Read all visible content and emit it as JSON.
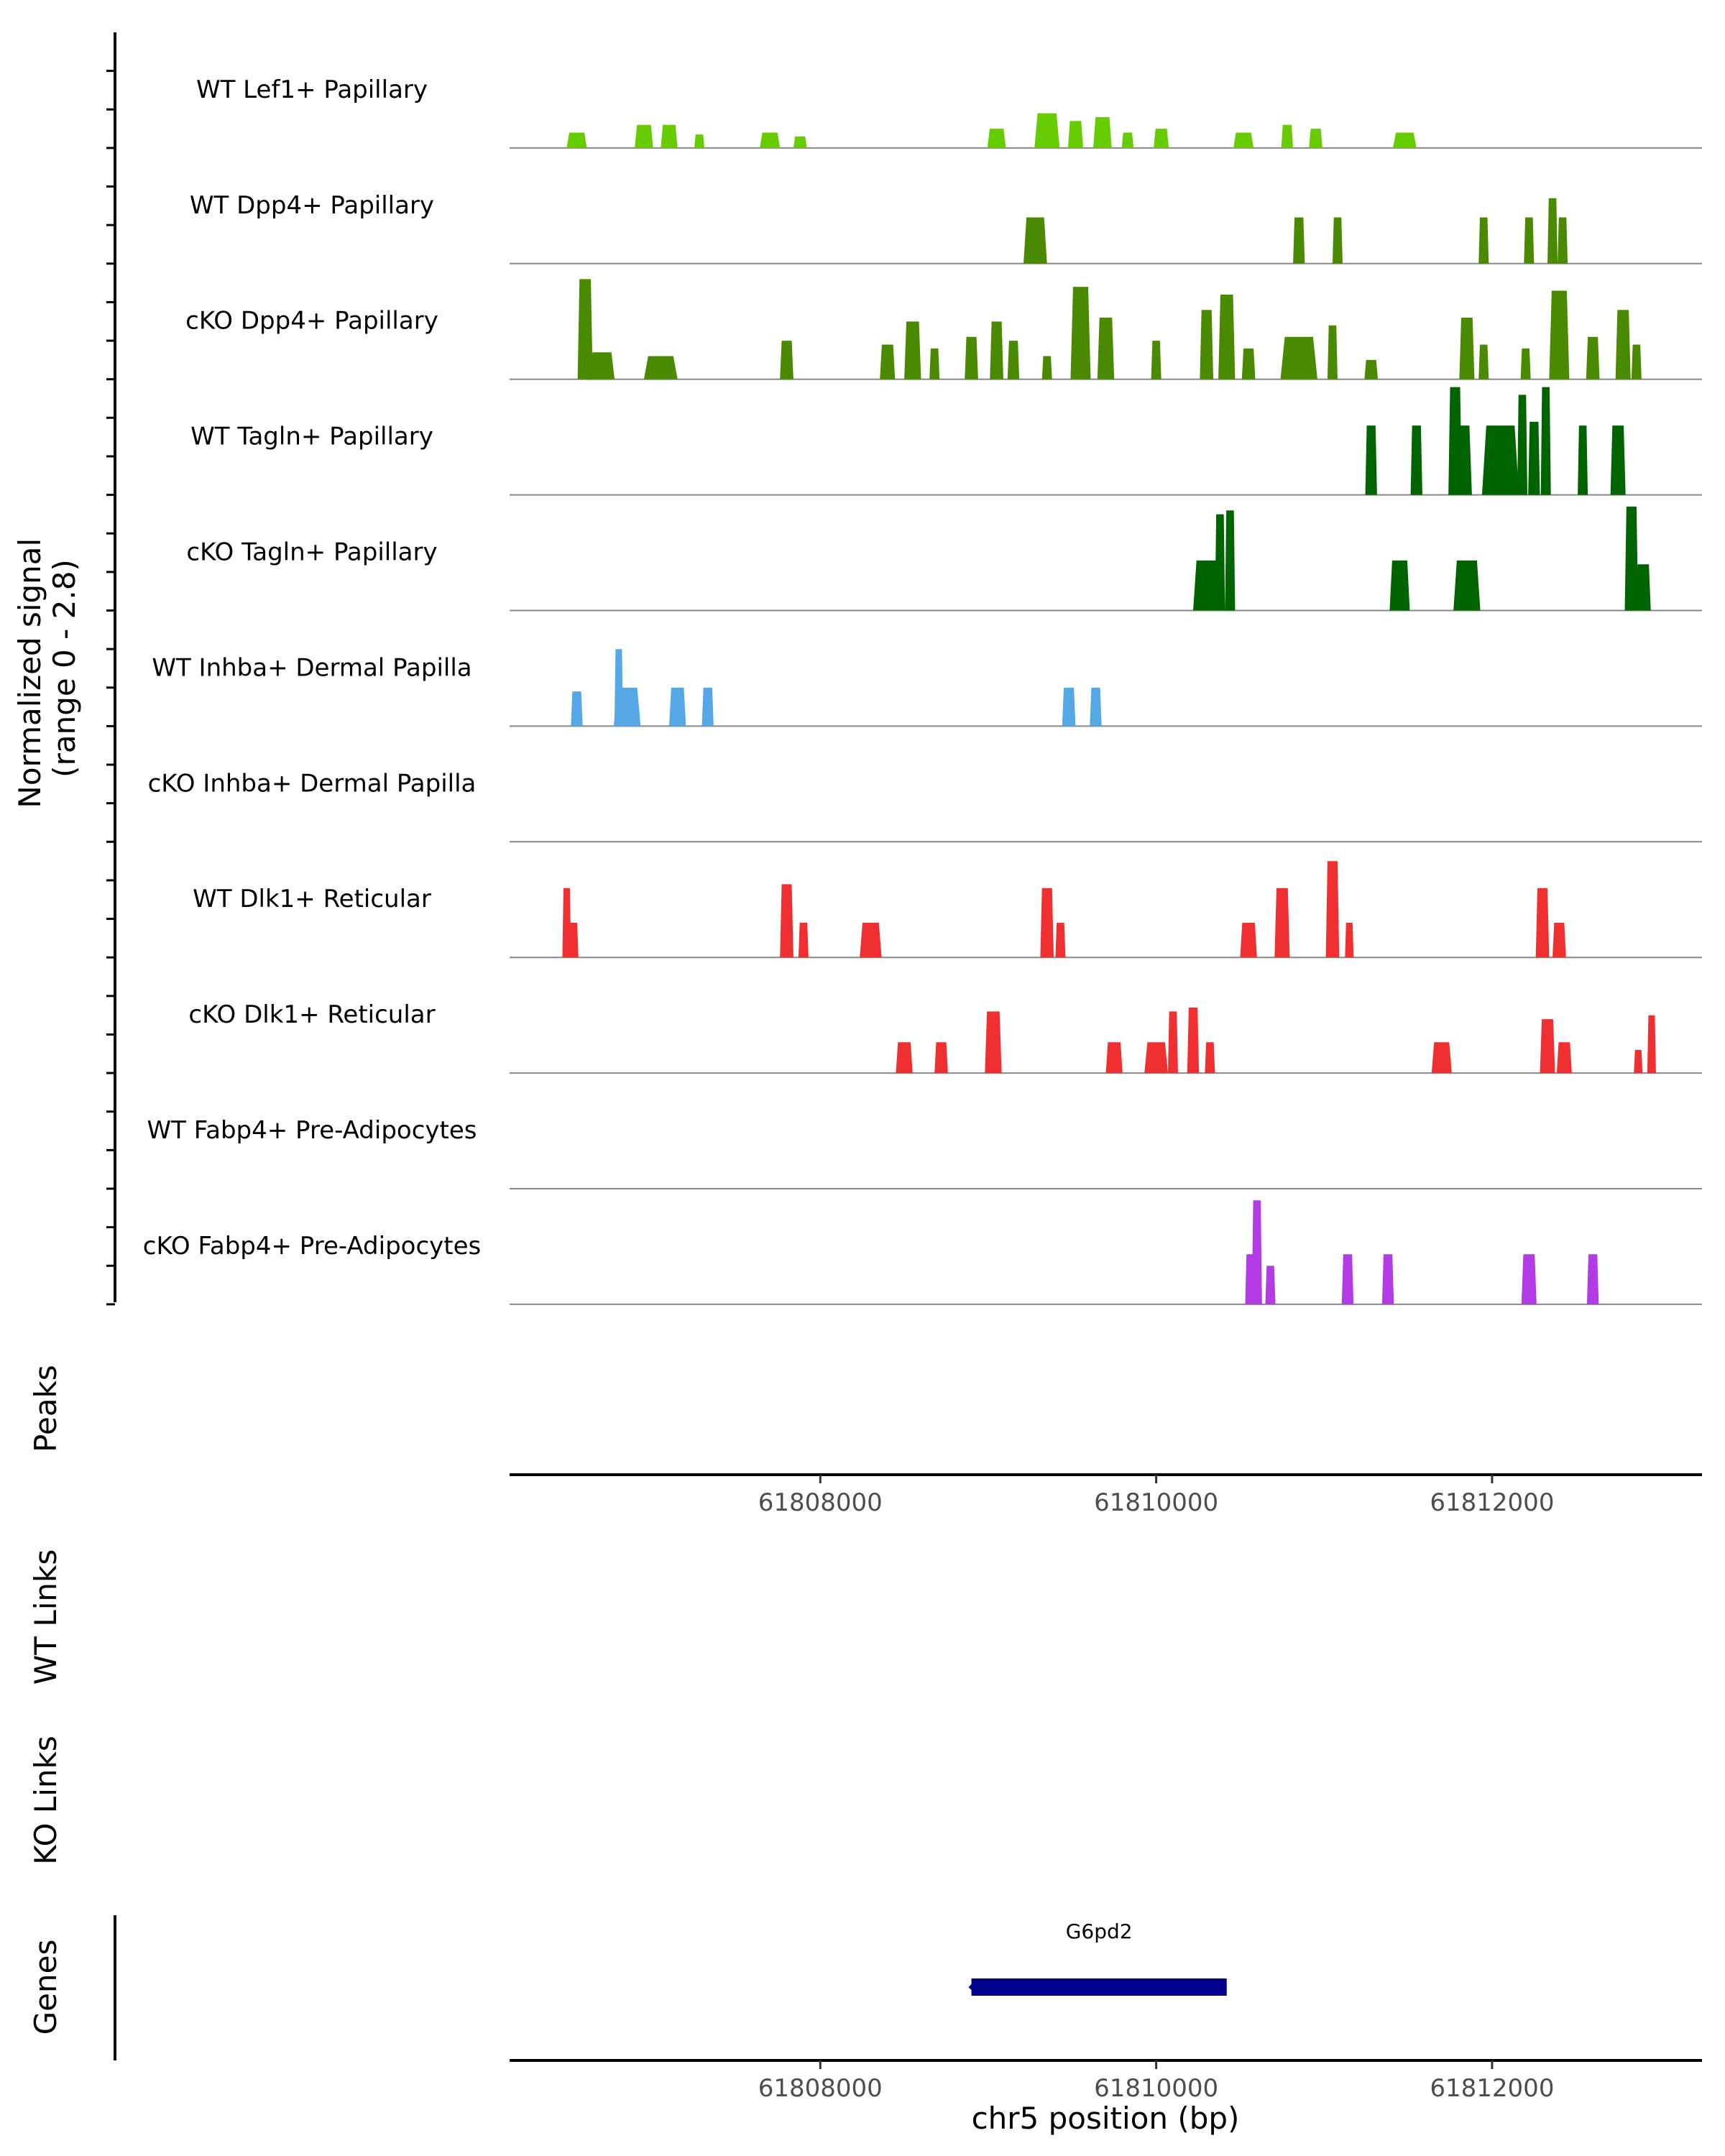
{
  "chart_data": {
    "type": "area",
    "title": "",
    "ylabel": "Normalized signal\n(range 0 - 2.8)",
    "ylim": [
      0,
      2.8
    ],
    "xlabel": "chr5 position (bp)",
    "xlim": [
      61806150,
      61813250
    ],
    "xticks": [
      61808000,
      61810000,
      61812000
    ],
    "xtick_labels": [
      "61808000",
      "61810000",
      "61812000"
    ],
    "tracks": [
      {
        "name": "WT Lef1+ Papillary",
        "color": "#66cc00",
        "peaks": [
          [
            61806550,
            0.4,
            120
          ],
          [
            61806950,
            0.6,
            110
          ],
          [
            61807100,
            0.6,
            100
          ],
          [
            61807280,
            0.35,
            60
          ],
          [
            61807700,
            0.4,
            120
          ],
          [
            61807880,
            0.3,
            80
          ],
          [
            61809050,
            0.5,
            110
          ],
          [
            61809350,
            0.9,
            150
          ],
          [
            61809520,
            0.7,
            90
          ],
          [
            61809680,
            0.8,
            110
          ],
          [
            61809830,
            0.4,
            70
          ],
          [
            61810030,
            0.5,
            90
          ],
          [
            61810520,
            0.4,
            120
          ],
          [
            61810780,
            0.6,
            70
          ],
          [
            61810950,
            0.5,
            80
          ],
          [
            61811480,
            0.4,
            140
          ]
        ]
      },
      {
        "name": "WT Dpp4+ Papillary",
        "color": "#4a8a00",
        "peaks": [
          [
            61809280,
            1.2,
            140
          ],
          [
            61810850,
            1.2,
            70
          ],
          [
            61811080,
            1.2,
            60
          ],
          [
            61811950,
            1.2,
            60
          ],
          [
            61812220,
            1.2,
            60
          ],
          [
            61812360,
            1.7,
            60
          ],
          [
            61812420,
            1.2,
            60
          ]
        ]
      },
      {
        "name": "cKO Dpp4+ Papillary",
        "color": "#4a8a00",
        "peaks": [
          [
            61806600,
            2.6,
            90
          ],
          [
            61806700,
            0.7,
            150
          ],
          [
            61807050,
            0.6,
            200
          ],
          [
            61807800,
            1.0,
            80
          ],
          [
            61808400,
            0.9,
            90
          ],
          [
            61808550,
            1.5,
            100
          ],
          [
            61808680,
            0.8,
            60
          ],
          [
            61808900,
            1.1,
            80
          ],
          [
            61809050,
            1.5,
            80
          ],
          [
            61809150,
            1.0,
            70
          ],
          [
            61809350,
            0.6,
            60
          ],
          [
            61809550,
            2.4,
            120
          ],
          [
            61809700,
            1.6,
            100
          ],
          [
            61810000,
            1.0,
            60
          ],
          [
            61810300,
            1.8,
            80
          ],
          [
            61810420,
            2.2,
            100
          ],
          [
            61810550,
            0.8,
            80
          ],
          [
            61810850,
            1.1,
            220
          ],
          [
            61811050,
            1.4,
            60
          ],
          [
            61811280,
            0.5,
            80
          ],
          [
            61811850,
            1.6,
            90
          ],
          [
            61811950,
            0.9,
            60
          ],
          [
            61812200,
            0.8,
            60
          ],
          [
            61812400,
            2.3,
            120
          ],
          [
            61812600,
            1.1,
            80
          ],
          [
            61812780,
            1.8,
            90
          ],
          [
            61812860,
            0.9,
            60
          ]
        ]
      },
      {
        "name": "WT Tagln+ Papillary",
        "color": "#006400",
        "peaks": [
          [
            61811280,
            1.8,
            70
          ],
          [
            61811550,
            1.8,
            70
          ],
          [
            61811780,
            2.8,
            80
          ],
          [
            61811820,
            1.8,
            120
          ],
          [
            61812050,
            1.8,
            220
          ],
          [
            61812180,
            2.6,
            60
          ],
          [
            61812250,
            1.9,
            70
          ],
          [
            61812320,
            2.8,
            60
          ],
          [
            61812540,
            1.8,
            60
          ],
          [
            61812750,
            1.8,
            90
          ]
        ]
      },
      {
        "name": "cKO Tagln+ Papillary",
        "color": "#006400",
        "peaks": [
          [
            61810300,
            1.3,
            160
          ],
          [
            61810380,
            2.5,
            60
          ],
          [
            61810440,
            2.6,
            60
          ],
          [
            61811450,
            1.3,
            120
          ],
          [
            61811850,
            1.3,
            160
          ],
          [
            61812830,
            2.7,
            80
          ],
          [
            61812900,
            1.2,
            90
          ]
        ]
      },
      {
        "name": "WT Inhba+ Dermal Papilla",
        "color": "#56a7e6",
        "peaks": [
          [
            61806550,
            0.9,
            70
          ],
          [
            61806800,
            2.0,
            30
          ],
          [
            61806850,
            1.0,
            160
          ],
          [
            61807150,
            1.0,
            100
          ],
          [
            61807330,
            1.0,
            70
          ],
          [
            61809480,
            1.0,
            80
          ],
          [
            61809640,
            1.0,
            70
          ]
        ]
      },
      {
        "name": "cKO Inhba+ Dermal Papilla",
        "color": "#56a7e6",
        "peaks": []
      },
      {
        "name": "WT Dlk1+ Reticular",
        "color": "#f03030",
        "peaks": [
          [
            61806490,
            1.8,
            20
          ],
          [
            61806530,
            0.9,
            60
          ],
          [
            61807800,
            1.9,
            80
          ],
          [
            61807900,
            0.9,
            60
          ],
          [
            61808300,
            0.9,
            130
          ],
          [
            61809350,
            1.8,
            80
          ],
          [
            61809430,
            0.9,
            60
          ],
          [
            61810550,
            0.9,
            100
          ],
          [
            61810750,
            1.8,
            90
          ],
          [
            61811050,
            2.5,
            80
          ],
          [
            61811150,
            0.9,
            50
          ],
          [
            61812300,
            1.8,
            80
          ],
          [
            61812400,
            0.9,
            80
          ]
        ]
      },
      {
        "name": "cKO Dlk1+ Reticular",
        "color": "#f03030",
        "peaks": [
          [
            61808500,
            0.8,
            100
          ],
          [
            61808720,
            0.8,
            80
          ],
          [
            61809030,
            1.6,
            100
          ],
          [
            61809750,
            0.8,
            100
          ],
          [
            61810000,
            0.8,
            140
          ],
          [
            61810100,
            1.6,
            60
          ],
          [
            61810220,
            1.7,
            70
          ],
          [
            61810320,
            0.8,
            60
          ],
          [
            61811700,
            0.8,
            120
          ],
          [
            61812330,
            1.4,
            90
          ],
          [
            61812430,
            0.8,
            90
          ],
          [
            61812870,
            0.6,
            40
          ],
          [
            61812950,
            1.5,
            40
          ]
        ]
      },
      {
        "name": "WT Fabp4+ Pre-Adipocytes",
        "color": "#b23be6",
        "peaks": []
      },
      {
        "name": "cKO Fabp4+ Pre-Adipocytes",
        "color": "#b23be6",
        "peaks": [
          [
            61810600,
            2.7,
            60
          ],
          [
            61810560,
            1.3,
            60
          ],
          [
            61810680,
            1.0,
            60
          ],
          [
            61811140,
            1.3,
            70
          ],
          [
            61811380,
            1.3,
            70
          ],
          [
            61812220,
            1.3,
            90
          ],
          [
            61812600,
            1.3,
            70
          ]
        ]
      }
    ],
    "panels": [
      "Peaks",
      "WT Links",
      "KO Links",
      "Genes"
    ],
    "genes": [
      {
        "name": "G6pd2",
        "start": 61808900,
        "end": 61810420,
        "strand": "-",
        "color": "#00008b"
      }
    ]
  }
}
